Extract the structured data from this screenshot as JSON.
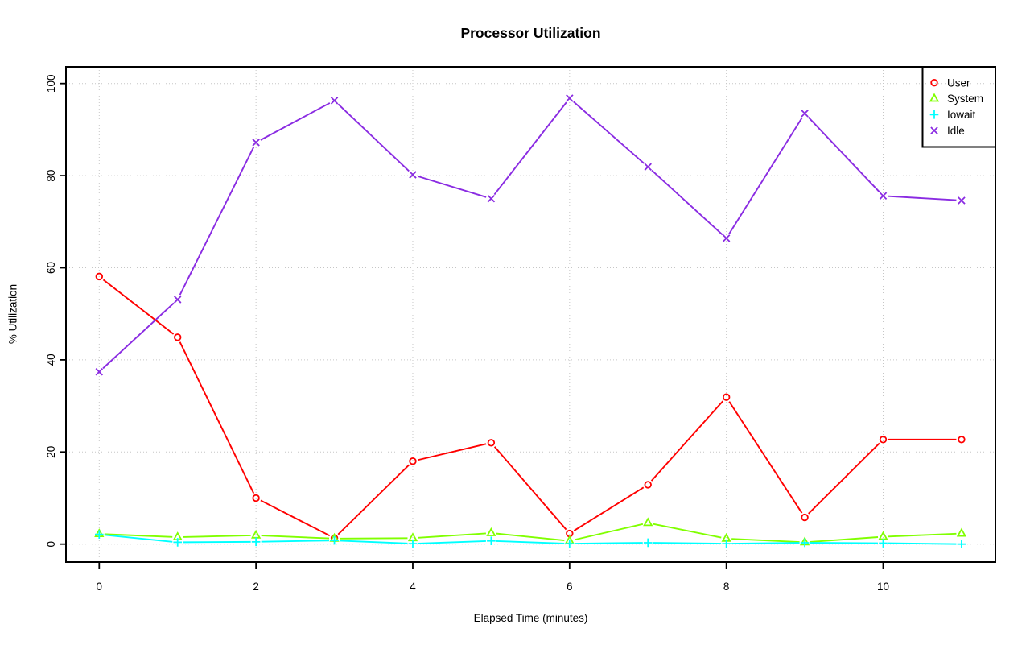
{
  "figure": {
    "title": "Processor Utilization",
    "xlabel": "Elapsed Time (minutes)",
    "ylabel": "% Utilization"
  },
  "chart_data": {
    "type": "line",
    "title": "Processor Utilization",
    "xlabel": "Elapsed Time (minutes)",
    "ylabel": "% Utilization",
    "x": [
      0,
      1,
      2,
      3,
      4,
      5,
      6,
      7,
      8,
      9,
      10,
      11
    ],
    "series": [
      {
        "name": "User",
        "color": "#FF0000",
        "marker": "circle",
        "values": [
          58.1,
          44.9,
          10.0,
          1.3,
          18.0,
          22.0,
          2.3,
          12.9,
          31.9,
          5.8,
          22.7,
          22.7
        ]
      },
      {
        "name": "System",
        "color": "#80FF00",
        "marker": "triangle",
        "values": [
          2.2,
          1.5,
          1.9,
          1.2,
          1.3,
          2.4,
          0.7,
          4.6,
          1.2,
          0.4,
          1.6,
          2.3
        ]
      },
      {
        "name": "Iowait",
        "color": "#00FFFF",
        "marker": "plus",
        "values": [
          2.1,
          0.4,
          0.5,
          0.8,
          0.1,
          0.7,
          0.1,
          0.3,
          0.1,
          0.3,
          0.2,
          0.0
        ]
      },
      {
        "name": "Idle",
        "color": "#8A2BE2",
        "marker": "x",
        "values": [
          37.4,
          53.1,
          87.2,
          96.3,
          80.2,
          75.0,
          96.8,
          81.9,
          66.4,
          93.5,
          75.6,
          74.6
        ]
      }
    ],
    "xticks": [
      0,
      2,
      4,
      6,
      8,
      10
    ],
    "yticks": [
      0,
      20,
      40,
      60,
      80,
      100
    ],
    "xlim": [
      0,
      11
    ],
    "ylim": [
      0,
      100
    ],
    "grid": true,
    "grid_style": "dotted",
    "grid_color": "#c6c6c6",
    "axis_color": "#000000",
    "legend": {
      "position": "top-right",
      "entries": [
        "User",
        "System",
        "Iowait",
        "Idle"
      ]
    }
  }
}
